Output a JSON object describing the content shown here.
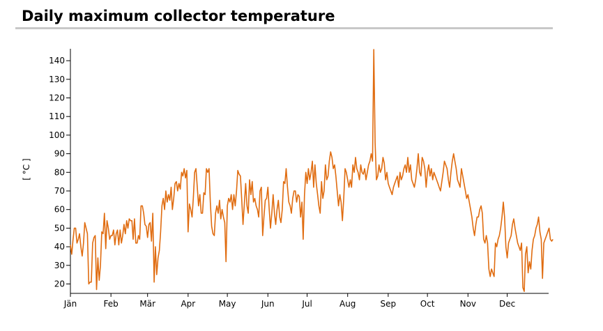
{
  "page": {
    "title": "Daily maximum collector temperature"
  },
  "chart_data": {
    "type": "line",
    "title": "Daily maximum collector temperature",
    "xlabel": "",
    "ylabel": "[ °C ]",
    "x_unit": "day of year",
    "xlim": [
      1,
      365
    ],
    "ylim": [
      15,
      147
    ],
    "grid": false,
    "legend": "none",
    "month_ticks": [
      {
        "label": "Jän",
        "day": 1
      },
      {
        "label": "Feb",
        "day": 32
      },
      {
        "label": "Mär",
        "day": 60
      },
      {
        "label": "Apr",
        "day": 91
      },
      {
        "label": "May",
        "day": 121
      },
      {
        "label": "Jun",
        "day": 152
      },
      {
        "label": "Jul",
        "day": 182
      },
      {
        "label": "Aug",
        "day": 213
      },
      {
        "label": "Sep",
        "day": 244
      },
      {
        "label": "Oct",
        "day": 274
      },
      {
        "label": "Nov",
        "day": 305
      },
      {
        "label": "Dec",
        "day": 335
      }
    ],
    "y_ticks": [
      20,
      30,
      40,
      50,
      60,
      70,
      80,
      90,
      100,
      110,
      120,
      130,
      140
    ],
    "series": [
      {
        "color": "#e06c10",
        "values": [
          41,
          36,
          44,
          50,
          50,
          42,
          44,
          47,
          40,
          35,
          42,
          53,
          50,
          47,
          20,
          21,
          21,
          42,
          45,
          46,
          17,
          34,
          22,
          30,
          48,
          47,
          58,
          39,
          54,
          50,
          44,
          46,
          46,
          49,
          41,
          47,
          49,
          41,
          49,
          42,
          46,
          52,
          47,
          54,
          50,
          55,
          54,
          54,
          44,
          55,
          42,
          42,
          46,
          44,
          62,
          62,
          58,
          52,
          51,
          45,
          52,
          53,
          43,
          58,
          21,
          40,
          25,
          34,
          38,
          48,
          62,
          66,
          60,
          70,
          64,
          68,
          65,
          72,
          60,
          66,
          74,
          75,
          70,
          74,
          71,
          80,
          78,
          82,
          77,
          81,
          48,
          63,
          60,
          56,
          66,
          80,
          82,
          72,
          62,
          68,
          58,
          58,
          69,
          68,
          82,
          80,
          82,
          64,
          51,
          47,
          46,
          58,
          62,
          58,
          65,
          55,
          60,
          56,
          53,
          32,
          62,
          66,
          64,
          68,
          60,
          68,
          62,
          70,
          81,
          79,
          78,
          65,
          52,
          63,
          74,
          62,
          58,
          76,
          68,
          75,
          64,
          66,
          62,
          60,
          56,
          70,
          72,
          46,
          56,
          65,
          66,
          72,
          60,
          50,
          58,
          68,
          58,
          52,
          60,
          65,
          56,
          53,
          60,
          75,
          74,
          82,
          72,
          64,
          62,
          58,
          66,
          70,
          70,
          64,
          68,
          67,
          56,
          64,
          44,
          68,
          80,
          74,
          82,
          76,
          80,
          86,
          72,
          84,
          74,
          68,
          62,
          58,
          75,
          66,
          70,
          84,
          76,
          78,
          86,
          91,
          88,
          82,
          84,
          78,
          70,
          62,
          68,
          64,
          54,
          66,
          82,
          80,
          76,
          72,
          76,
          72,
          84,
          80,
          88,
          82,
          80,
          76,
          84,
          80,
          79,
          82,
          76,
          80,
          84,
          86,
          90,
          86,
          146,
          96,
          76,
          78,
          84,
          80,
          82,
          88,
          85,
          76,
          80,
          74,
          72,
          70,
          68,
          72,
          74,
          76,
          78,
          72,
          80,
          76,
          78,
          82,
          84,
          80,
          88,
          80,
          84,
          76,
          74,
          72,
          76,
          82,
          90,
          80,
          78,
          88,
          86,
          82,
          72,
          80,
          84,
          78,
          82,
          76,
          80,
          78,
          76,
          74,
          72,
          70,
          75,
          80,
          86,
          84,
          82,
          76,
          72,
          80,
          86,
          90,
          86,
          82,
          76,
          74,
          72,
          82,
          78,
          74,
          70,
          66,
          68,
          64,
          60,
          56,
          50,
          46,
          52,
          56,
          56,
          60,
          62,
          58,
          44,
          42,
          46,
          42,
          28,
          24,
          28,
          26,
          24,
          42,
          40,
          44,
          46,
          50,
          56,
          64,
          56,
          40,
          34,
          42,
          44,
          46,
          52,
          55,
          50,
          46,
          42,
          40,
          38,
          42,
          18,
          16,
          36,
          40,
          26,
          32,
          28,
          38,
          44,
          46,
          50,
          52,
          56,
          48,
          44,
          23,
          42,
          44,
          46,
          48,
          50,
          44,
          43,
          44
        ]
      }
    ]
  }
}
